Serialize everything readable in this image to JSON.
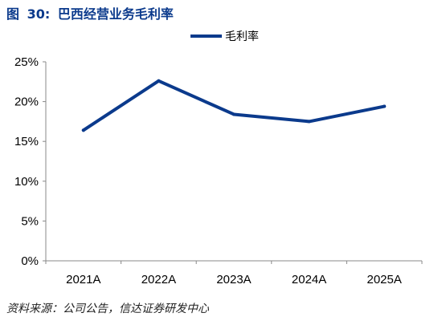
{
  "figure": {
    "label": "图",
    "number": "30:",
    "title": "巴西经营业务毛利率"
  },
  "source": "资料来源：公司公告，信达证券研发中心",
  "colors": {
    "series": "#0b3a8c",
    "axis": "#888888",
    "title": "#0b3a8c"
  },
  "chart_data": {
    "type": "line",
    "categories": [
      "2021A",
      "2022A",
      "2023A",
      "2024A",
      "2025A"
    ],
    "series": [
      {
        "name": "毛利率",
        "values": [
          16.4,
          22.6,
          18.4,
          17.5,
          19.4
        ]
      }
    ],
    "y_ticks": [
      "0%",
      "5%",
      "10%",
      "15%",
      "20%",
      "25%"
    ],
    "ylim": [
      0,
      25
    ],
    "legend_position": "top-center",
    "grid": false
  }
}
